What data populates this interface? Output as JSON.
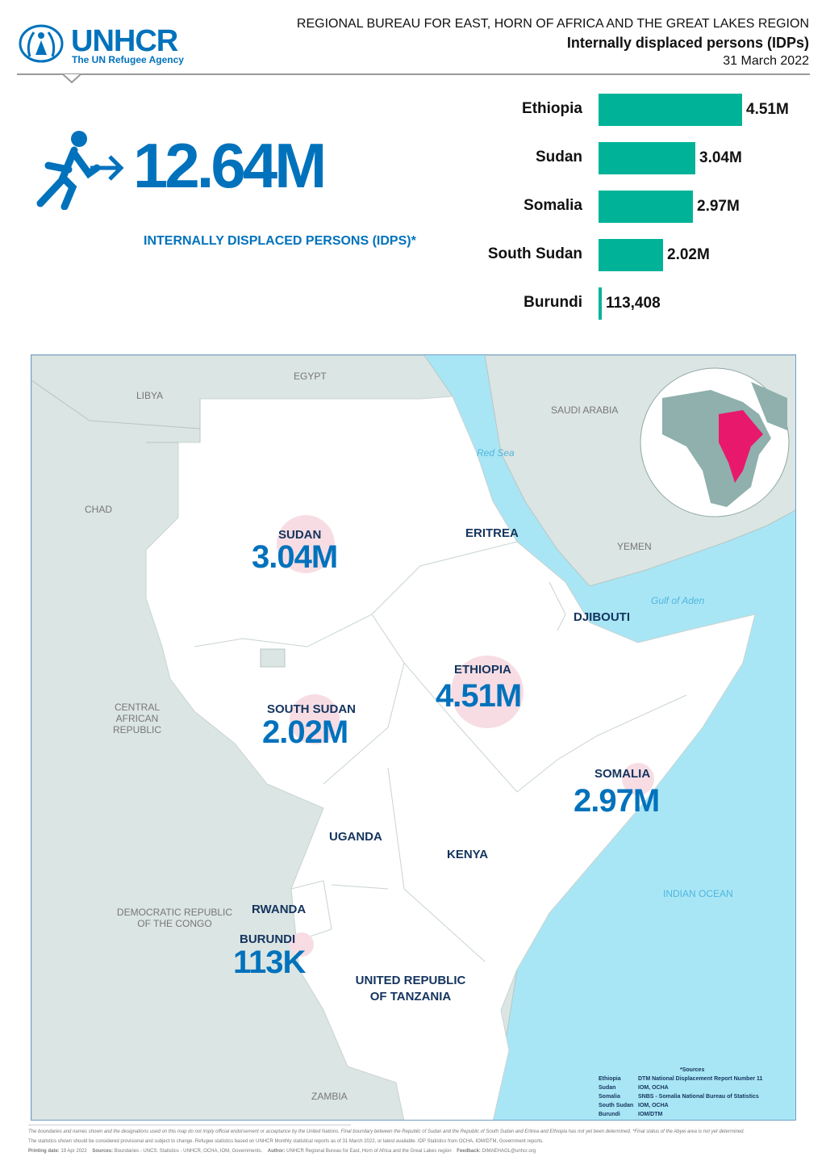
{
  "logo": {
    "name": "UNHCR",
    "tagline": "The UN Refugee Agency"
  },
  "header": {
    "region": "REGIONAL BUREAU FOR EAST, HORN OF AFRICA AND THE GREAT LAKES REGION",
    "title": "Internally displaced persons (IDPs)",
    "date": "31 March 2022"
  },
  "headline": {
    "value": "12.64M",
    "label": "INTERNALLY DISPLACED PERSONS (IDPS)*",
    "icon": "person-running-arrow-icon"
  },
  "chart_data": {
    "type": "bar",
    "orientation": "horizontal",
    "categories": [
      "Ethiopia",
      "Sudan",
      "Somalia",
      "South Sudan",
      "Burundi"
    ],
    "values": [
      4510000,
      3040000,
      2970000,
      2020000,
      113408
    ],
    "labels": [
      "4.51M",
      "3.04M",
      "2.97M",
      "2.02M",
      "113,408"
    ],
    "color": "#00b398"
  },
  "map": {
    "context_labels": [
      "EGYPT",
      "LIBYA",
      "CHAD",
      "SAUDI ARABIA",
      "YEMEN",
      "CENTRAL AFRICAN REPUBLIC",
      "DEMOCRATIC REPUBLIC OF THE CONGO",
      "ZAMBIA"
    ],
    "seas": [
      "Red Sea",
      "Gulf of Aden",
      "INDIAN OCEAN"
    ],
    "countries": {
      "sudan": {
        "name": "SUDAN",
        "value": "3.04M"
      },
      "south_sudan": {
        "name": "SOUTH SUDAN",
        "value": "2.02M"
      },
      "ethiopia": {
        "name": "ETHIOPIA",
        "value": "4.51M"
      },
      "somalia": {
        "name": "SOMALIA",
        "value": "2.97M"
      },
      "burundi": {
        "name": "BURUNDI",
        "value": "113K"
      },
      "eritrea": "ERITREA",
      "djibouti": "DJIBOUTI",
      "uganda": "UGANDA",
      "kenya": "KENYA",
      "rwanda": "RWANDA",
      "tanzania": "UNITED REPUBLIC OF TANZANIA"
    },
    "highlight_color": "#e8196c"
  },
  "sources": {
    "title": "*Sources",
    "rows": [
      [
        "Ethiopia",
        "DTM National Displacement Report Number 11"
      ],
      [
        "Sudan",
        "IOM, OCHA"
      ],
      [
        "Somalia",
        "SNBS - Somalia National Bureau of Statistics"
      ],
      [
        "South Sudan",
        "IOM, OCHA"
      ],
      [
        "Burundi",
        "IOM/DTM"
      ]
    ]
  },
  "footer": {
    "line1": "The boundaries and names shown and the designations used on this map do not imply official endorsement or acceptance by the United Nations. Final boundary between the Republic of Sudan and the Republic of South Sudan and Eritrea and Ethiopia has not yet been determined. *Final status of the Abyei area is not yet determined.",
    "line2": "The statistics shown should be considered provisional and subject to change. Refugee statistics based on UNHCR Monthly statistical reports as of 31 March 2022, or latest available. IDP Statistics from OCHA, IOM/DTM, Government reports.",
    "printing_label": "Printing date:",
    "printing": "19 Apr 2022",
    "sources_label": "Sources:",
    "sources": "Boundaries - UNCS. Statistics - UNHCR, OCHA, IOM, Governments.",
    "author_label": "Author:",
    "author": "UNHCR Regional Bureau for East, Horn of Africa and the Great Lakes region",
    "feedback_label": "Feedback:",
    "feedback": "DIMAEHAGL@unhcr.org"
  }
}
